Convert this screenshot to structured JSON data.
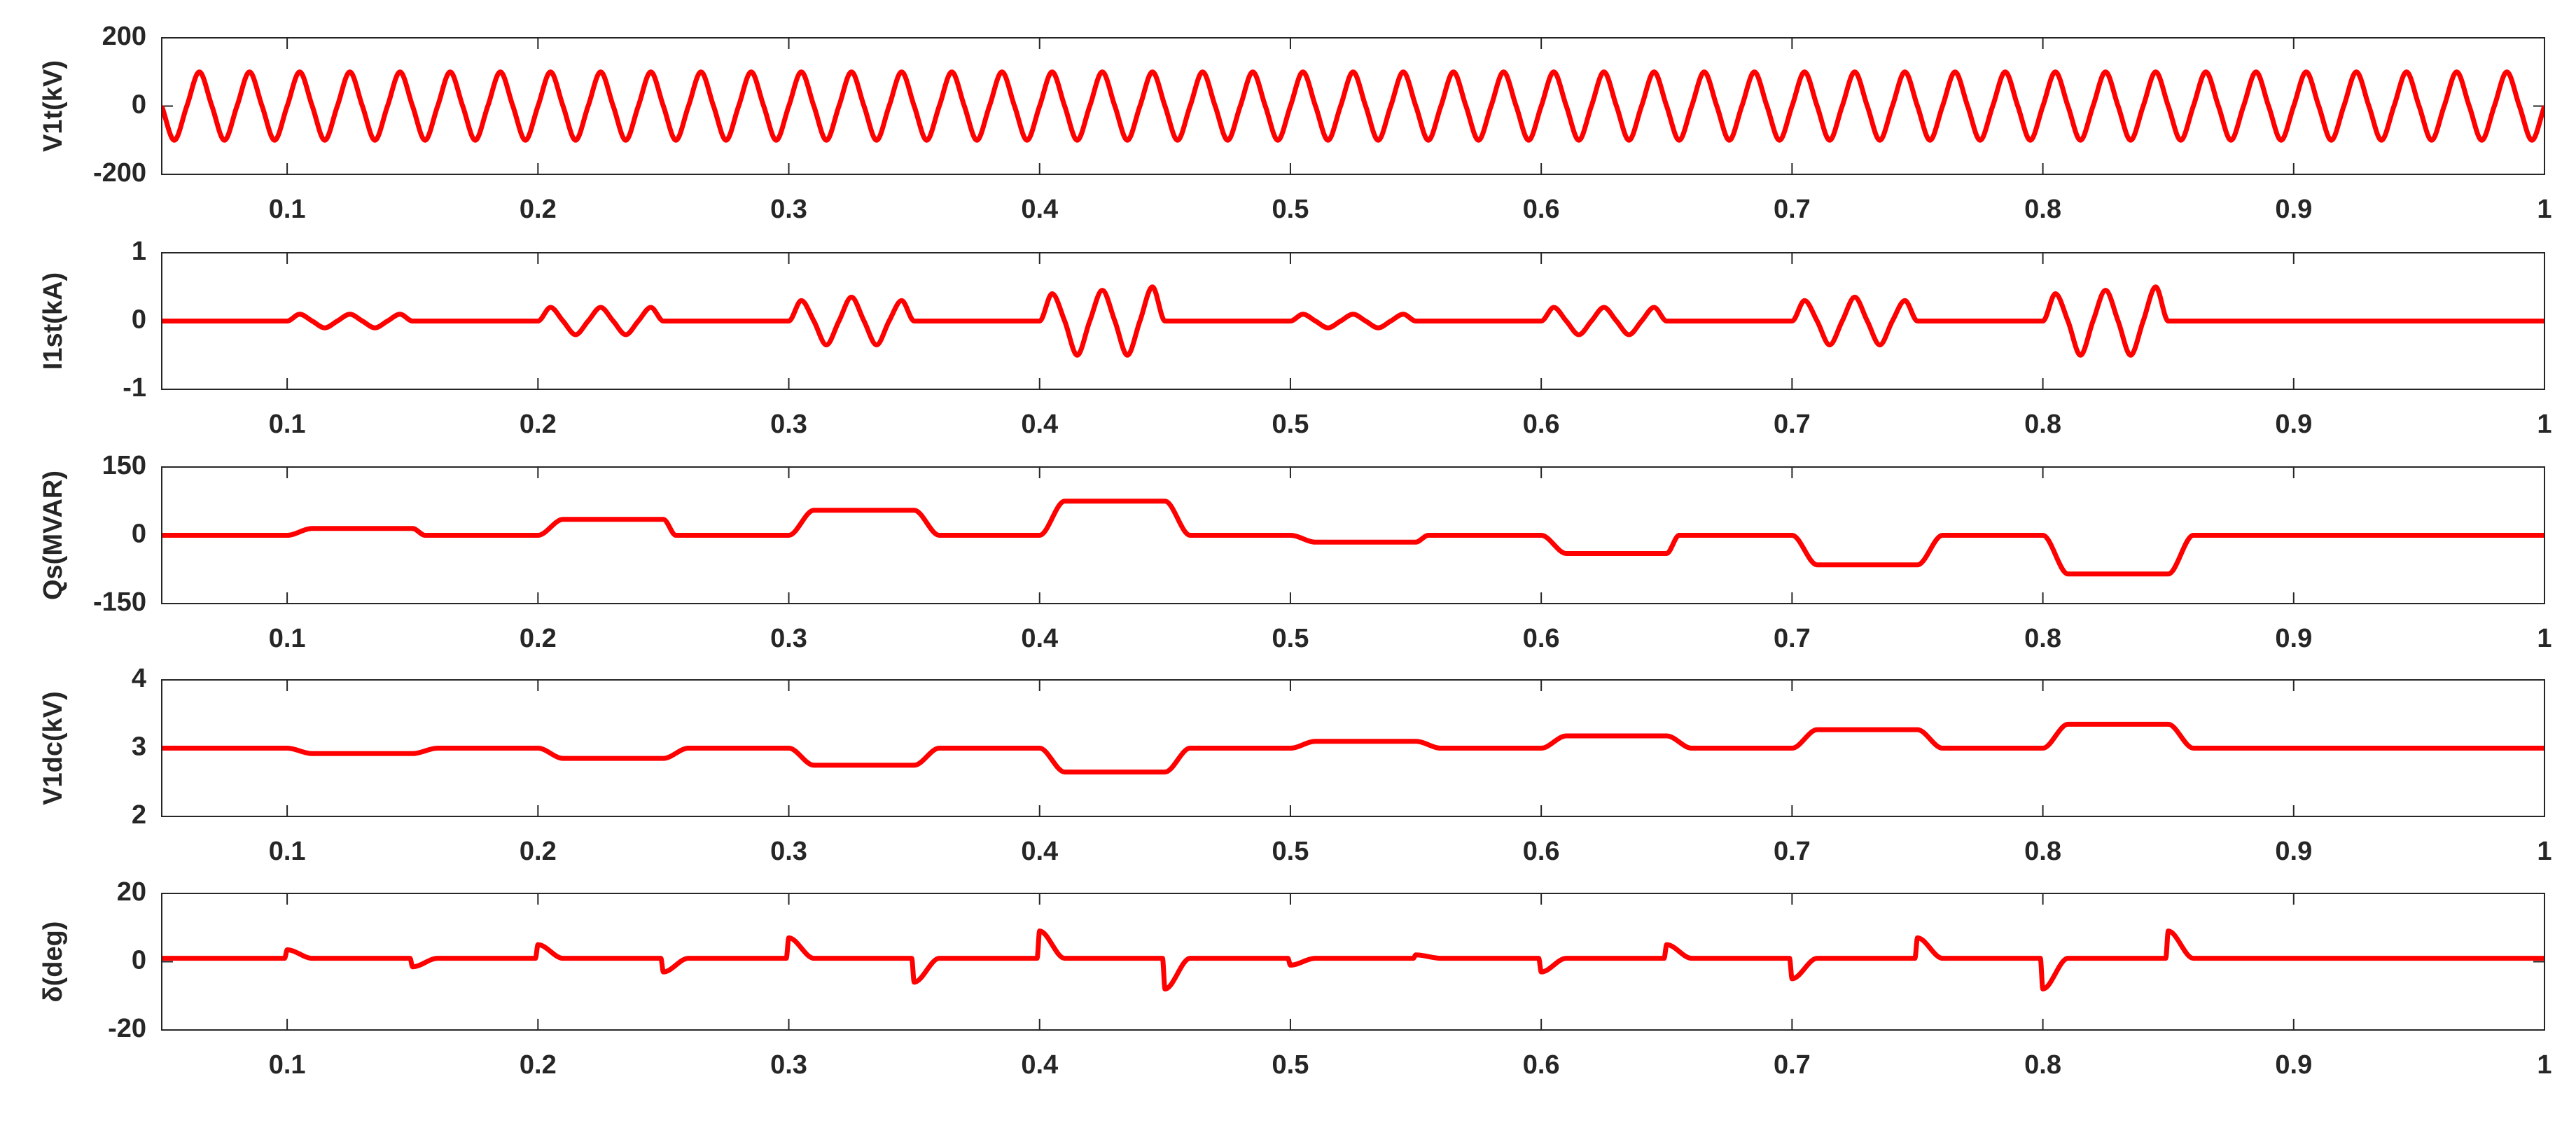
{
  "chart_data": [
    {
      "type": "line",
      "ylabel": "V1t(kV)",
      "color": "#ff0000",
      "xlim": [
        0.05,
        1
      ],
      "xticks": [
        0.1,
        0.2,
        0.3,
        0.4,
        0.5,
        0.6,
        0.7,
        0.8,
        0.9,
        1
      ],
      "ylim": [
        -200,
        200
      ],
      "yticks": [
        -200,
        0,
        200
      ],
      "x": [
        0.05,
        0.055,
        0.06,
        0.065,
        0.07,
        0.075,
        0.08,
        0.085,
        0.09,
        0.095,
        0.1,
        0.105,
        0.11,
        0.115,
        0.12,
        0.125,
        0.13,
        0.135,
        0.14,
        0.145,
        0.15,
        0.155,
        0.16,
        0.165,
        0.17,
        0.175,
        0.18,
        0.185,
        0.19,
        0.195,
        0.2,
        0.205,
        0.21,
        0.215,
        0.22,
        0.225,
        0.23,
        0.235,
        0.24,
        0.245,
        0.25,
        0.255,
        0.26,
        0.265,
        0.27,
        0.275,
        0.28,
        0.285,
        0.29,
        0.295,
        0.3,
        0.305,
        0.31,
        0.315,
        0.32,
        0.325,
        0.33,
        0.335,
        0.34,
        0.345,
        0.35,
        0.355,
        0.36,
        0.365,
        0.37,
        0.375,
        0.38,
        0.385,
        0.39,
        0.395,
        0.4,
        0.405,
        0.41,
        0.415,
        0.42,
        0.425,
        0.43,
        0.435,
        0.44,
        0.445,
        0.45,
        0.455,
        0.46,
        0.465,
        0.47,
        0.475,
        0.48,
        0.485,
        0.49,
        0.495,
        0.5,
        0.505,
        0.51,
        0.515,
        0.52,
        0.525,
        0.53,
        0.535,
        0.54,
        0.545,
        0.55,
        0.555,
        0.56,
        0.565,
        0.57,
        0.575,
        0.58,
        0.585,
        0.59,
        0.595,
        0.6,
        0.605,
        0.61,
        0.615,
        0.62,
        0.625,
        0.63,
        0.635,
        0.64,
        0.645,
        0.65,
        0.655,
        0.66,
        0.665,
        0.67,
        0.675,
        0.68,
        0.685,
        0.69,
        0.695,
        0.7,
        0.705,
        0.71,
        0.715,
        0.72,
        0.725,
        0.73,
        0.735,
        0.74,
        0.745,
        0.75,
        0.755,
        0.76,
        0.765,
        0.77,
        0.775,
        0.78,
        0.785,
        0.79,
        0.795,
        0.8,
        0.805,
        0.81,
        0.815,
        0.82,
        0.825,
        0.83,
        0.835,
        0.84,
        0.845,
        0.85,
        0.855,
        0.86,
        0.865,
        0.87,
        0.875,
        0.88,
        0.885,
        0.89,
        0.895,
        0.9,
        0.905,
        0.91,
        0.915,
        0.92,
        0.925,
        0.93,
        0.935,
        0.94,
        0.945,
        0.95,
        0.955,
        0.96,
        0.965,
        0.97,
        0.975,
        0.98,
        0.985,
        0.99,
        0.995,
        1
      ],
      "values": [
        0,
        -100,
        0,
        100,
        0,
        -100,
        0,
        100,
        0,
        -100,
        0,
        100,
        0,
        -100,
        0,
        100,
        0,
        -100,
        0,
        100,
        0,
        -100,
        0,
        100,
        0,
        -100,
        0,
        100,
        0,
        -100,
        0,
        100,
        0,
        -100,
        0,
        100,
        0,
        -100,
        0,
        100,
        0,
        -100,
        0,
        100,
        0,
        -100,
        0,
        100,
        0,
        -100,
        0,
        100,
        0,
        -100,
        0,
        100,
        0,
        -100,
        0,
        100,
        0,
        -100,
        0,
        100,
        0,
        -100,
        0,
        100,
        0,
        -100,
        0,
        100,
        0,
        -100,
        0,
        100,
        0,
        -100,
        0,
        100,
        0,
        -100,
        0,
        100,
        0,
        -100,
        0,
        100,
        0,
        -100,
        0,
        100,
        0,
        -100,
        0,
        100,
        0,
        -100,
        0,
        100,
        0,
        -100,
        0,
        100,
        0,
        -100,
        0,
        100,
        0,
        -100,
        0,
        100,
        0,
        -100,
        0,
        100,
        0,
        -100,
        0,
        100,
        0,
        -100,
        0,
        100,
        0,
        -100,
        0,
        100,
        0,
        -100,
        0,
        100,
        0,
        -100,
        0,
        100,
        0,
        -100,
        0,
        100,
        0,
        -100,
        0,
        100,
        0,
        -100,
        0,
        100,
        0,
        -100,
        0,
        100,
        0,
        -100,
        0,
        100,
        0,
        -100,
        0,
        100,
        0,
        -100,
        0,
        100,
        0,
        -100,
        0,
        100,
        0,
        -100,
        0,
        100,
        0,
        -100,
        0,
        100,
        0,
        -100,
        0,
        100,
        0,
        -100,
        0,
        100,
        0,
        -100,
        0,
        100,
        0,
        -100,
        0
      ]
    },
    {
      "type": "line",
      "ylabel": "I1st(kA)",
      "color": "#ff0000",
      "xlim": [
        0.05,
        1
      ],
      "xticks": [
        0.1,
        0.2,
        0.3,
        0.4,
        0.5,
        0.6,
        0.7,
        0.8,
        0.9,
        1
      ],
      "ylim": [
        -1,
        1
      ],
      "yticks": [
        -1,
        0,
        1
      ],
      "x": [
        0.05,
        0.1,
        0.105,
        0.11,
        0.115,
        0.12,
        0.125,
        0.13,
        0.135,
        0.14,
        0.145,
        0.15,
        0.2,
        0.205,
        0.21,
        0.215,
        0.22,
        0.225,
        0.23,
        0.235,
        0.24,
        0.245,
        0.25,
        0.3,
        0.305,
        0.31,
        0.315,
        0.32,
        0.325,
        0.33,
        0.335,
        0.34,
        0.345,
        0.35,
        0.4,
        0.405,
        0.41,
        0.415,
        0.42,
        0.425,
        0.43,
        0.435,
        0.44,
        0.445,
        0.45,
        0.5,
        0.505,
        0.51,
        0.515,
        0.52,
        0.525,
        0.53,
        0.535,
        0.54,
        0.545,
        0.55,
        0.6,
        0.605,
        0.61,
        0.615,
        0.62,
        0.625,
        0.63,
        0.635,
        0.64,
        0.645,
        0.65,
        0.7,
        0.705,
        0.71,
        0.715,
        0.72,
        0.725,
        0.73,
        0.735,
        0.74,
        0.745,
        0.75,
        0.8,
        0.805,
        0.81,
        0.815,
        0.82,
        0.825,
        0.83,
        0.835,
        0.84,
        0.845,
        0.85,
        1
      ],
      "values": [
        0,
        0,
        0.1,
        0,
        -0.1,
        0,
        0.1,
        0,
        -0.1,
        0,
        0.1,
        0,
        0,
        0.2,
        0,
        -0.2,
        0,
        0.2,
        0,
        -0.2,
        0,
        0.2,
        0,
        0,
        0.3,
        0,
        -0.35,
        0,
        0.35,
        0,
        -0.35,
        0,
        0.3,
        0,
        0,
        0.4,
        0,
        -0.5,
        0,
        0.45,
        0,
        -0.5,
        0,
        0.5,
        0,
        0,
        0.1,
        0,
        -0.1,
        0,
        0.1,
        0,
        -0.1,
        0,
        0.1,
        0,
        0,
        0.2,
        0,
        -0.2,
        0,
        0.2,
        0,
        -0.2,
        0,
        0.2,
        0,
        0,
        0.3,
        0,
        -0.35,
        0,
        0.35,
        0,
        -0.35,
        0,
        0.3,
        0,
        0,
        0.4,
        0,
        -0.5,
        0,
        0.45,
        0,
        -0.5,
        0,
        0.5,
        0,
        0
      ]
    },
    {
      "type": "line",
      "ylabel": "Qs(MVAR)",
      "color": "#ff0000",
      "xlim": [
        0.05,
        1
      ],
      "xticks": [
        0.1,
        0.2,
        0.3,
        0.4,
        0.5,
        0.6,
        0.7,
        0.8,
        0.9,
        1
      ],
      "ylim": [
        -150,
        150
      ],
      "yticks": [
        -150,
        0,
        150
      ],
      "x": [
        0.05,
        0.1,
        0.11,
        0.15,
        0.155,
        0.2,
        0.21,
        0.25,
        0.255,
        0.3,
        0.31,
        0.35,
        0.36,
        0.4,
        0.41,
        0.45,
        0.46,
        0.5,
        0.51,
        0.55,
        0.555,
        0.6,
        0.61,
        0.65,
        0.655,
        0.7,
        0.71,
        0.75,
        0.76,
        0.8,
        0.81,
        0.85,
        0.86,
        1
      ],
      "values": [
        0,
        0,
        15,
        15,
        0,
        0,
        35,
        35,
        0,
        0,
        55,
        55,
        0,
        0,
        75,
        75,
        0,
        0,
        -15,
        -15,
        0,
        0,
        -40,
        -40,
        0,
        0,
        -65,
        -65,
        0,
        0,
        -85,
        -85,
        0,
        0
      ]
    },
    {
      "type": "line",
      "ylabel": "V1dc(kV)",
      "color": "#ff0000",
      "xlim": [
        0.05,
        1
      ],
      "xticks": [
        0.1,
        0.2,
        0.3,
        0.4,
        0.5,
        0.6,
        0.7,
        0.8,
        0.9,
        1
      ],
      "ylim": [
        2,
        4
      ],
      "yticks": [
        2,
        3,
        4
      ],
      "x": [
        0.05,
        0.1,
        0.11,
        0.15,
        0.16,
        0.2,
        0.21,
        0.25,
        0.26,
        0.3,
        0.31,
        0.35,
        0.36,
        0.4,
        0.41,
        0.45,
        0.46,
        0.5,
        0.51,
        0.55,
        0.56,
        0.6,
        0.61,
        0.65,
        0.66,
        0.7,
        0.71,
        0.75,
        0.76,
        0.8,
        0.81,
        0.85,
        0.86,
        1
      ],
      "values": [
        3,
        3,
        2.92,
        2.92,
        3,
        3,
        2.85,
        2.85,
        3,
        3,
        2.75,
        2.75,
        3,
        3,
        2.65,
        2.65,
        3,
        3,
        3.1,
        3.1,
        3,
        3,
        3.18,
        3.18,
        3,
        3,
        3.27,
        3.27,
        3,
        3,
        3.35,
        3.35,
        3,
        3
      ]
    },
    {
      "type": "line",
      "ylabel": "δ(deg)",
      "color": "#ff0000",
      "xlim": [
        0.05,
        1
      ],
      "xticks": [
        0.1,
        0.2,
        0.3,
        0.4,
        0.5,
        0.6,
        0.7,
        0.8,
        0.9,
        1
      ],
      "ylim": [
        -20,
        20
      ],
      "yticks": [
        -20,
        0,
        20
      ],
      "x": [
        0.05,
        0.099,
        0.1,
        0.11,
        0.149,
        0.15,
        0.16,
        0.199,
        0.2,
        0.21,
        0.249,
        0.25,
        0.26,
        0.299,
        0.3,
        0.31,
        0.349,
        0.35,
        0.36,
        0.399,
        0.4,
        0.41,
        0.449,
        0.45,
        0.46,
        0.499,
        0.5,
        0.51,
        0.549,
        0.55,
        0.56,
        0.599,
        0.6,
        0.61,
        0.649,
        0.65,
        0.66,
        0.699,
        0.7,
        0.71,
        0.749,
        0.75,
        0.76,
        0.799,
        0.8,
        0.81,
        0.849,
        0.85,
        0.86,
        1
      ],
      "values": [
        1,
        1,
        3.5,
        1,
        1,
        -1.5,
        1,
        1,
        5,
        1,
        1,
        -3,
        1,
        1,
        7,
        1,
        1,
        -6,
        1,
        1,
        9,
        1,
        1,
        -8,
        1,
        1,
        -1,
        1,
        1,
        2,
        1,
        1,
        -3,
        1,
        1,
        5,
        1,
        1,
        -5,
        1,
        1,
        7,
        1,
        1,
        -8,
        1,
        1,
        9,
        1,
        1
      ]
    }
  ]
}
